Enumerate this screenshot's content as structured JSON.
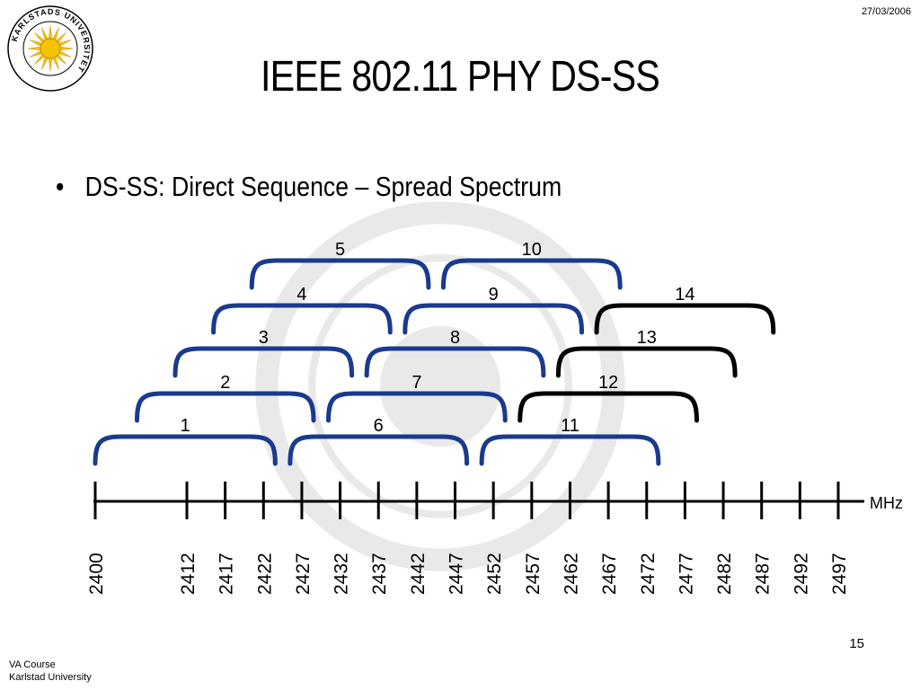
{
  "header": {
    "date": "27/03/2006"
  },
  "slide": {
    "title": "IEEE 802.11 PHY DS-SS",
    "bullet": "DS-SS: Direct Sequence – Spread Spectrum",
    "page_number": "15"
  },
  "footer": {
    "line1": "VA Course",
    "line2": "Karlstad University"
  },
  "logo": {
    "ring_text": "KARLSTADS UNIVERSITET"
  },
  "diagram": {
    "unit": "MHz",
    "axis_ticks": [
      "2400",
      "2412",
      "2417",
      "2422",
      "2427",
      "2432",
      "2437",
      "2442",
      "2447",
      "2452",
      "2457",
      "2462",
      "2467",
      "2472",
      "2477",
      "2482",
      "2487",
      "2492",
      "2497"
    ],
    "channels": [
      {
        "label": "1",
        "start_mhz": 2400,
        "end_mhz": 2424,
        "color": "#1a3a8f"
      },
      {
        "label": "2",
        "start_mhz": 2405,
        "end_mhz": 2429,
        "color": "#1a3a8f"
      },
      {
        "label": "3",
        "start_mhz": 2410,
        "end_mhz": 2434,
        "color": "#1a3a8f"
      },
      {
        "label": "4",
        "start_mhz": 2415,
        "end_mhz": 2439,
        "color": "#1a3a8f"
      },
      {
        "label": "5",
        "start_mhz": 2420,
        "end_mhz": 2444,
        "color": "#1a3a8f"
      },
      {
        "label": "6",
        "start_mhz": 2425,
        "end_mhz": 2449,
        "color": "#1a3a8f"
      },
      {
        "label": "7",
        "start_mhz": 2430,
        "end_mhz": 2454,
        "color": "#1a3a8f"
      },
      {
        "label": "8",
        "start_mhz": 2435,
        "end_mhz": 2459,
        "color": "#1a3a8f"
      },
      {
        "label": "9",
        "start_mhz": 2440,
        "end_mhz": 2464,
        "color": "#1a3a8f"
      },
      {
        "label": "10",
        "start_mhz": 2445,
        "end_mhz": 2469,
        "color": "#1a3a8f"
      },
      {
        "label": "11",
        "start_mhz": 2450,
        "end_mhz": 2474,
        "color": "#1a3a8f"
      },
      {
        "label": "12",
        "start_mhz": 2455,
        "end_mhz": 2479,
        "color": "#000000"
      },
      {
        "label": "13",
        "start_mhz": 2460,
        "end_mhz": 2484,
        "color": "#000000"
      },
      {
        "label": "14",
        "start_mhz": 2465,
        "end_mhz": 2489,
        "color": "#000000"
      }
    ]
  }
}
